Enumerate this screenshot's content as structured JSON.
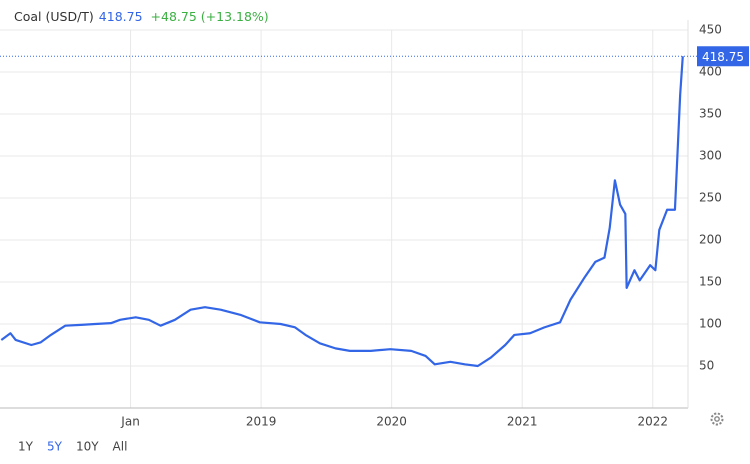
{
  "chart_data": {
    "type": "line",
    "series": [
      {
        "name": "Coal (USD/T)",
        "color": "#3366e6",
        "values": [
          81,
          89,
          81,
          75,
          78,
          87,
          98,
          99,
          100,
          101,
          105,
          108,
          105,
          98,
          105,
          117,
          120,
          117,
          111,
          102,
          100,
          96,
          87,
          77,
          71,
          68,
          68,
          70,
          68,
          62,
          52,
          55,
          52,
          50,
          60,
          75,
          87,
          89,
          96,
          102,
          129,
          156,
          174,
          179,
          214,
          271,
          242,
          231,
          143,
          164,
          152,
          170,
          164,
          212,
          236,
          236,
          373,
          418.75
        ]
      }
    ],
    "x": [
      2017.01,
      2017.08,
      2017.12,
      2017.24,
      2017.31,
      2017.39,
      2017.5,
      2017.62,
      2017.73,
      2017.85,
      2017.92,
      2018.04,
      2018.14,
      2018.23,
      2018.34,
      2018.46,
      2018.57,
      2018.69,
      2018.84,
      2018.99,
      2019.15,
      2019.26,
      2019.34,
      2019.45,
      2019.57,
      2019.68,
      2019.84,
      2019.99,
      2020.15,
      2020.26,
      2020.33,
      2020.45,
      2020.56,
      2020.66,
      2020.76,
      2020.87,
      2020.94,
      2021.06,
      2021.17,
      2021.29,
      2021.37,
      2021.48,
      2021.56,
      2021.63,
      2021.67,
      2021.71,
      2021.75,
      2021.79,
      2021.8,
      2021.86,
      2021.9,
      2021.98,
      2022.02,
      2022.05,
      2022.11,
      2022.17,
      2022.21,
      2022.23
    ],
    "xlim": [
      2017.0,
      2022.27
    ],
    "xticks": [
      {
        "value": 2018,
        "label": "Jan"
      },
      2019,
      2020,
      2021,
      2022
    ],
    "ylim": [
      0,
      450
    ],
    "yticks": [
      50,
      100,
      150,
      200,
      250,
      300,
      350,
      400,
      450
    ],
    "grid": true,
    "last_value": 418.75,
    "change": "+48.75 (+13.18%)",
    "change_color": "#3cb043",
    "ranges": [
      "1Y",
      "5Y",
      "10Y",
      "All"
    ],
    "active_range": "5Y"
  }
}
